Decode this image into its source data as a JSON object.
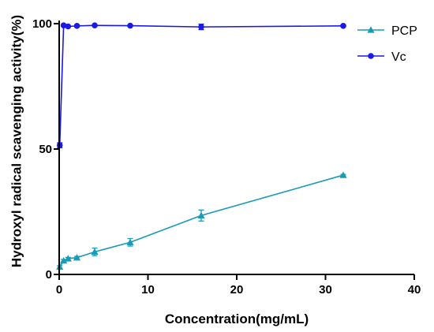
{
  "chart_data": {
    "type": "line",
    "xlabel": "Concentration(mg/mL)",
    "ylabel": "Hydroxyl radical scavenging activity(%)",
    "xlim": [
      0,
      40
    ],
    "ylim": [
      0,
      100
    ],
    "xticks": [
      "0",
      "10",
      "20",
      "30",
      "40"
    ],
    "yticks": [
      "0",
      "50",
      "100"
    ],
    "grid": false,
    "legend_position": "top-right",
    "series": [
      {
        "name": "PCP",
        "marker": "triangle",
        "color": "#1a9bb5",
        "x": [
          0.0625,
          0.5,
          1,
          2,
          4,
          8,
          16,
          32
        ],
        "y": [
          3,
          5.5,
          6.3,
          6.7,
          9,
          12.8,
          23.5,
          39.6
        ],
        "err": [
          0.5,
          0.5,
          0.5,
          0.5,
          1.5,
          1.5,
          2.2,
          0.3
        ]
      },
      {
        "name": "Vc",
        "marker": "circle",
        "color": "#1a1ae6",
        "x": [
          0.0625,
          0.5,
          1,
          2,
          4,
          8,
          16,
          32
        ],
        "y": [
          51.5,
          99.3,
          98.9,
          99.1,
          99.3,
          99.2,
          98.7,
          99.1
        ],
        "err": [
          1,
          0.3,
          0.3,
          0.3,
          0.3,
          0.3,
          1.1,
          0.3
        ]
      }
    ]
  }
}
